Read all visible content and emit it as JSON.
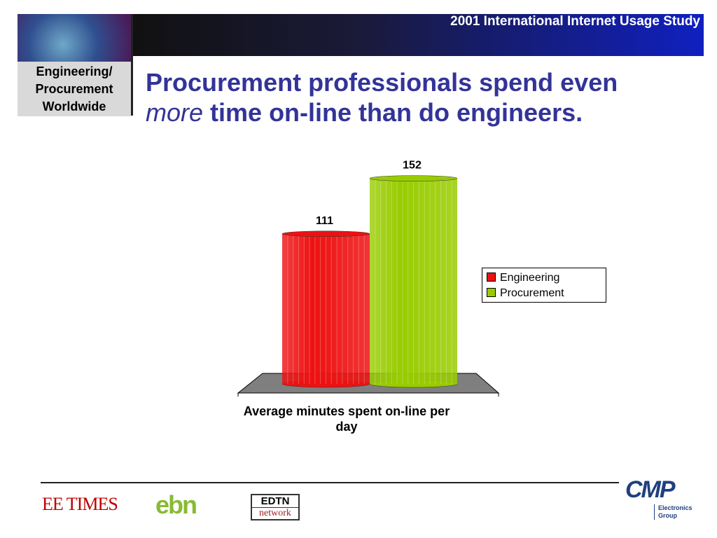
{
  "header": {
    "banner": "2001 International Internet Usage Study",
    "badge": "Engineering/ Procurement Worldwide"
  },
  "title": {
    "line1": "Procurement professionals spend even",
    "emphasis": "more",
    "line2": "time on-line than do engineers."
  },
  "chart_data": {
    "type": "bar",
    "categories": [
      "Average minutes spent on-line per day"
    ],
    "series": [
      {
        "name": "Engineering",
        "color": "#ee1111",
        "values": [
          111
        ]
      },
      {
        "name": "Procurement",
        "color": "#99cc00",
        "values": [
          152
        ]
      }
    ],
    "legend": "right"
  },
  "footer": {
    "logos": [
      "EE TIMES",
      "ebn",
      "EDTN",
      "network",
      "CMP",
      "Electronics Group"
    ]
  }
}
